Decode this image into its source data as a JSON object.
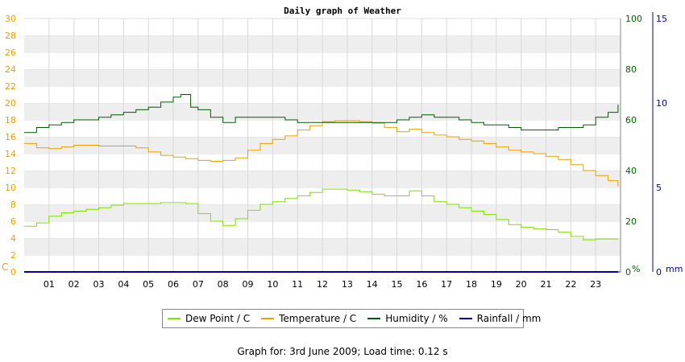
{
  "chart_data": {
    "type": "line",
    "title": "Daily graph of Weather",
    "x_ticks": [
      "01",
      "02",
      "03",
      "04",
      "05",
      "06",
      "07",
      "08",
      "09",
      "10",
      "11",
      "12",
      "13",
      "14",
      "15",
      "16",
      "17",
      "18",
      "19",
      "20",
      "21",
      "22",
      "23"
    ],
    "xlim": [
      0,
      24
    ],
    "left_axis": {
      "unit_label": "C",
      "ticks": [
        0,
        2,
        4,
        6,
        8,
        10,
        12,
        14,
        16,
        18,
        20,
        22,
        24,
        26,
        28,
        30
      ],
      "range": [
        0,
        30
      ],
      "color": "#e8a000"
    },
    "right_axis_humidity": {
      "unit_label": "%",
      "ticks": [
        0,
        20,
        40,
        60,
        80,
        100
      ],
      "range": [
        0,
        100
      ],
      "color": "#006400"
    },
    "right_axis_rain": {
      "unit_label": "mm",
      "ticks": [
        0,
        5,
        10,
        15
      ],
      "range": [
        0,
        15
      ],
      "color": "#0000aa"
    },
    "grid": "horizontal bands",
    "legend_position": "bottom",
    "series": [
      {
        "name": "Dew Point / C",
        "axis": "left",
        "color": "#7ee000",
        "x": [
          0,
          0.5,
          1,
          1.5,
          2,
          2.5,
          3,
          3.5,
          4,
          4.5,
          5,
          5.5,
          6,
          6.5,
          7,
          7.5,
          8,
          8.5,
          9,
          9.5,
          10,
          10.5,
          11,
          11.5,
          12,
          12.5,
          13,
          13.5,
          14,
          14.5,
          15,
          15.5,
          16,
          16.5,
          17,
          17.5,
          18,
          18.5,
          19,
          19.5,
          20,
          20.5,
          21,
          21.5,
          22,
          22.5,
          23,
          23.5,
          23.9
        ],
        "values": [
          5.4,
          5.8,
          6.6,
          7.0,
          7.2,
          7.4,
          7.6,
          7.9,
          8.1,
          8.1,
          8.1,
          8.2,
          8.2,
          8.1,
          6.9,
          6.0,
          5.5,
          6.3,
          7.3,
          8.0,
          8.3,
          8.7,
          9.0,
          9.4,
          9.8,
          9.8,
          9.7,
          9.5,
          9.2,
          9.0,
          9.0,
          9.6,
          9.0,
          8.3,
          8.0,
          7.6,
          7.2,
          6.8,
          6.2,
          5.6,
          5.3,
          5.1,
          5.0,
          4.7,
          4.2,
          3.8,
          3.9,
          3.9,
          3.9
        ]
      },
      {
        "name": "Temperature / C",
        "axis": "left",
        "color": "#e8a000",
        "x": [
          0,
          0.5,
          1,
          1.5,
          2,
          2.5,
          3,
          3.5,
          4,
          4.5,
          5,
          5.5,
          6,
          6.5,
          7,
          7.5,
          8,
          8.5,
          9,
          9.5,
          10,
          10.5,
          11,
          11.5,
          12,
          12.5,
          13,
          13.5,
          14,
          14.5,
          15,
          15.5,
          16,
          16.5,
          17,
          17.5,
          18,
          18.5,
          19,
          19.5,
          20,
          20.5,
          21,
          21.5,
          22,
          22.5,
          23,
          23.5,
          23.9
        ],
        "values": [
          15.2,
          14.7,
          14.6,
          14.8,
          15.0,
          15.0,
          14.9,
          14.9,
          14.9,
          14.7,
          14.2,
          13.8,
          13.6,
          13.4,
          13.2,
          13.1,
          13.2,
          13.5,
          14.4,
          15.2,
          15.7,
          16.1,
          16.8,
          17.3,
          17.8,
          17.9,
          17.9,
          17.8,
          17.6,
          17.1,
          16.6,
          16.9,
          16.5,
          16.2,
          16.0,
          15.7,
          15.5,
          15.2,
          14.8,
          14.4,
          14.2,
          14.0,
          13.7,
          13.3,
          12.7,
          12.0,
          11.4,
          10.8,
          10.1
        ]
      },
      {
        "name": "Humidity / %",
        "axis": "right_humidity",
        "color": "#005a00",
        "x": [
          0,
          0.5,
          1,
          1.5,
          2,
          2.5,
          3,
          3.5,
          4,
          4.5,
          5,
          5.5,
          6,
          6.3,
          6.7,
          7,
          7.5,
          8,
          8.5,
          9,
          9.5,
          10,
          10.5,
          11,
          11.5,
          12,
          12.5,
          13,
          13.5,
          14,
          14.5,
          15,
          15.5,
          16,
          16.5,
          17,
          17.5,
          18,
          18.5,
          19,
          19.5,
          20,
          20.5,
          21,
          21.5,
          22,
          22.5,
          23,
          23.5,
          23.9
        ],
        "values": [
          55,
          57,
          58,
          59,
          60,
          60,
          61,
          62,
          63,
          64,
          65,
          67,
          69,
          70,
          65,
          64,
          61,
          59,
          61,
          61,
          61,
          61,
          60,
          59,
          59,
          59,
          59,
          59,
          59,
          59,
          59,
          60,
          61,
          62,
          61,
          61,
          60,
          59,
          58,
          58,
          57,
          56,
          56,
          56,
          57,
          57,
          58,
          61,
          63,
          66
        ]
      },
      {
        "name": "Rainfall / mm",
        "axis": "right_rain",
        "color": "#0000aa",
        "x": [
          0,
          23.9
        ],
        "values": [
          0,
          0
        ]
      }
    ]
  },
  "footer": "Graph for: 3rd June 2009; Load time: 0.12 s"
}
